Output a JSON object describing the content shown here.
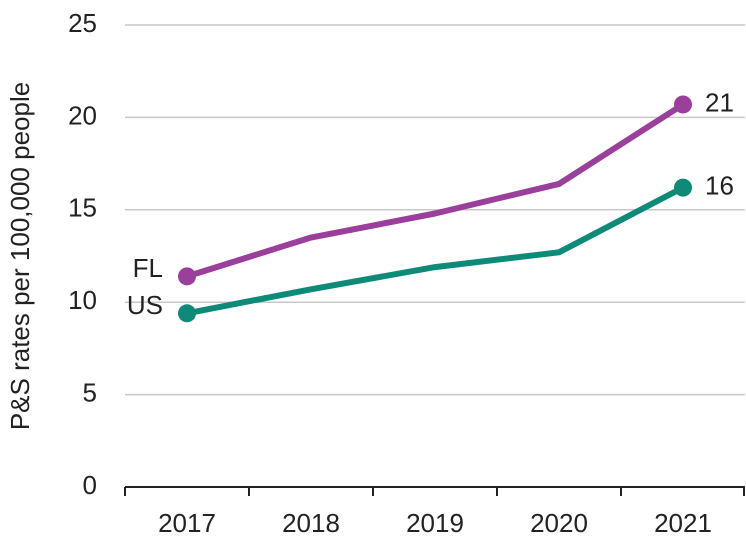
{
  "chart_data": {
    "type": "line",
    "y_label": "P&S rates per 100,000 people",
    "categories": [
      "2017",
      "2018",
      "2019",
      "2020",
      "2021"
    ],
    "series": [
      {
        "name": "FL",
        "color": "#9b3f9c",
        "values": [
          11.4,
          13.5,
          14.8,
          16.4,
          20.7
        ],
        "value_labels": [
          null,
          null,
          null,
          null,
          "21"
        ]
      },
      {
        "name": "US",
        "color": "#0e8a78",
        "values": [
          9.4,
          10.7,
          11.9,
          12.7,
          16.2
        ],
        "value_labels": [
          null,
          null,
          null,
          null,
          "16"
        ]
      }
    ],
    "ylim": [
      0,
      25
    ],
    "yticks": [
      0,
      5,
      10,
      15,
      20,
      25
    ],
    "grid": true
  }
}
